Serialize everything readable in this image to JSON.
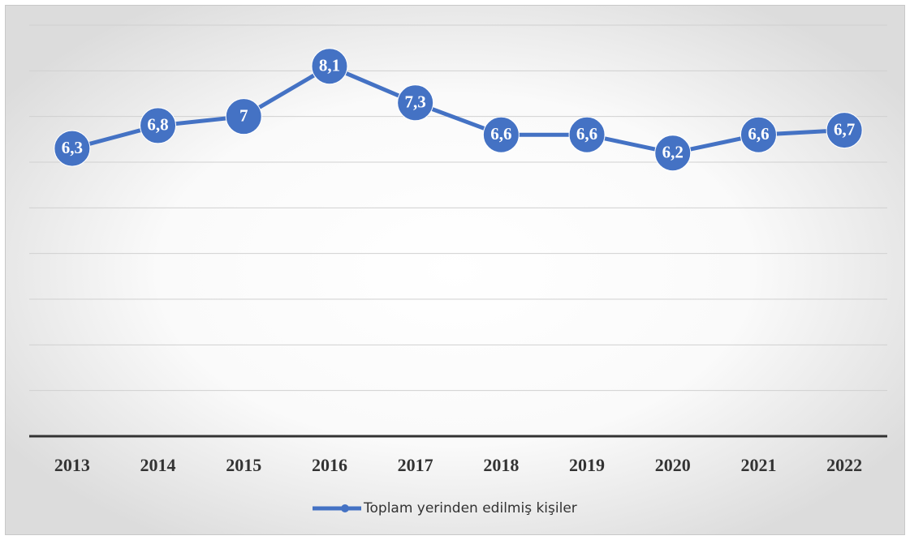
{
  "chart_data": {
    "type": "line",
    "categories": [
      "2013",
      "2014",
      "2015",
      "2016",
      "2017",
      "2018",
      "2019",
      "2020",
      "2021",
      "2022"
    ],
    "series": [
      {
        "name": "Toplam yerinden edilmiş kişiler",
        "color": "#4472c4",
        "values": [
          6.3,
          6.8,
          7,
          8.1,
          7.3,
          6.6,
          6.6,
          6.2,
          6.6,
          6.7
        ],
        "value_labels": [
          "6,3",
          "6,8",
          "7",
          "8,1",
          "7,3",
          "6,6",
          "6,6",
          "6,2",
          "6,6",
          "6,7"
        ]
      }
    ],
    "ylim": [
      0,
      9
    ],
    "yticks": [
      0,
      1,
      2,
      3,
      4,
      5,
      6,
      7,
      8,
      9
    ],
    "grid": true,
    "legend": "bottom"
  }
}
